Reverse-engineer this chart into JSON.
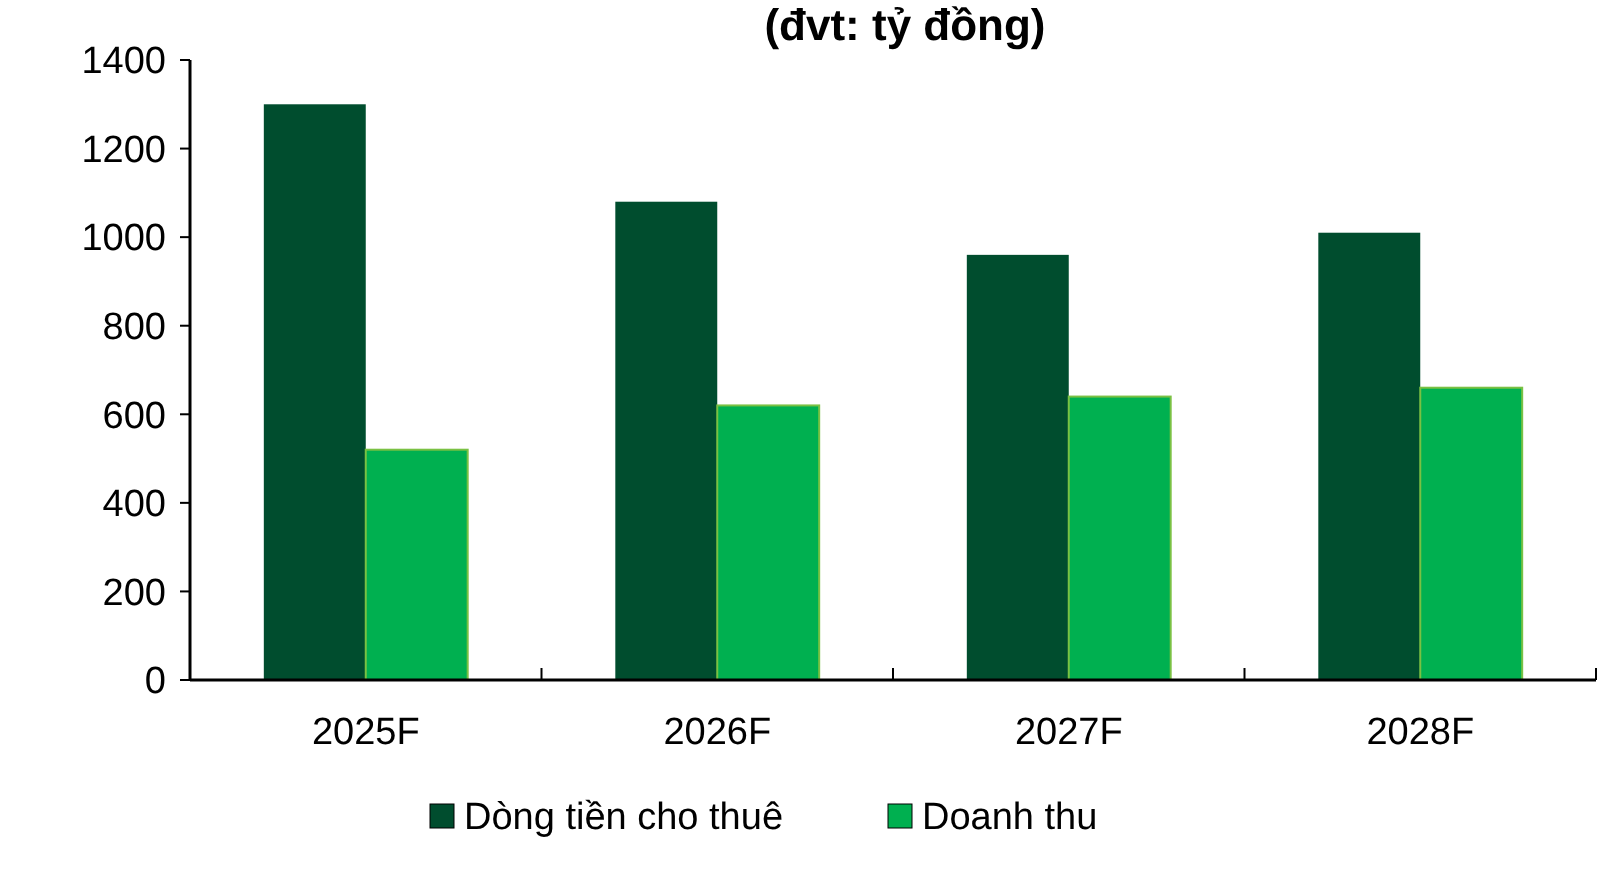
{
  "chart_data": {
    "type": "bar",
    "title": "(đvt: tỷ đồng)",
    "categories": [
      "2025F",
      "2026F",
      "2027F",
      "2028F"
    ],
    "series": [
      {
        "name": "Dòng tiền cho thuê",
        "color": "#004d2e",
        "values": [
          1300,
          1080,
          960,
          1010
        ]
      },
      {
        "name": "Doanh thu",
        "color": "#00b050",
        "values": [
          520,
          620,
          640,
          660
        ]
      }
    ],
    "ylim": [
      0,
      1400
    ],
    "yticks": [
      0,
      200,
      400,
      600,
      800,
      1000,
      1200,
      1400
    ],
    "grid": false,
    "legend": "bottom"
  }
}
